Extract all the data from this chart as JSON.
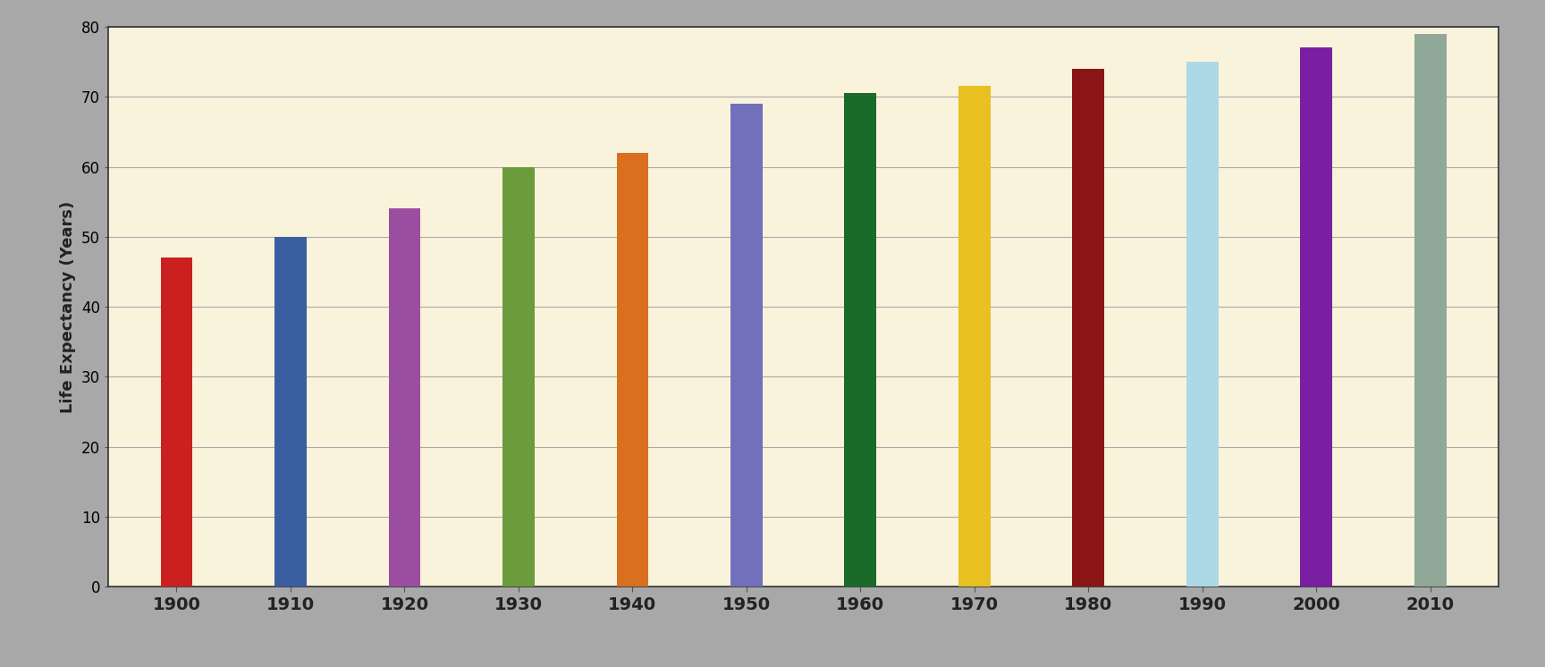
{
  "categories": [
    "1900",
    "1910",
    "1920",
    "1930",
    "1940",
    "1950",
    "1960",
    "1970",
    "1980",
    "1990",
    "2000",
    "2010"
  ],
  "values": [
    47,
    50,
    54,
    60,
    62,
    69,
    70.5,
    71.5,
    74,
    75,
    77,
    79
  ],
  "bar_colors": [
    "#CC2020",
    "#3A5FA0",
    "#9B4EA0",
    "#6B9B3A",
    "#D97020",
    "#7070BB",
    "#1A6B2A",
    "#E8C020",
    "#8B1515",
    "#ADD8E6",
    "#7B1FA2",
    "#90A898"
  ],
  "ylabel": "Life Expectancy (Years)",
  "ylim": [
    0,
    80
  ],
  "yticks": [
    0,
    10,
    20,
    30,
    40,
    50,
    60,
    70,
    80
  ],
  "background_color": "#FAF3DC",
  "grid_color": "#AAAAAA",
  "bar_width": 0.28,
  "figure_bg": "#A8A8A8",
  "title": ""
}
